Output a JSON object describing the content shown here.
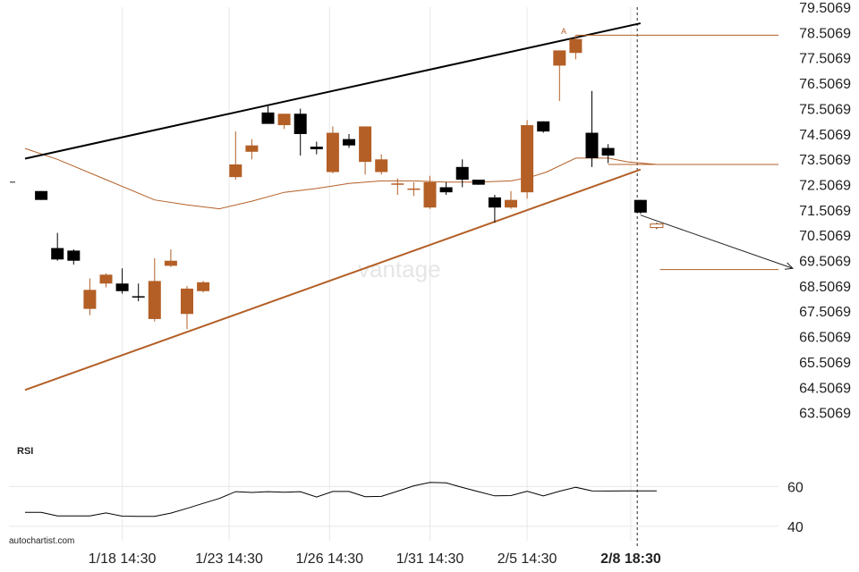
{
  "brand": "autochartist.com",
  "watermark": "vantage",
  "rsi_label": "RSI",
  "pattern_point_label": "A",
  "colors": {
    "up": "#b35f26",
    "down": "#000000",
    "support": "#b35f26",
    "resistance": "#000000",
    "grid": "#e8e8e8"
  },
  "chart_data": {
    "type": "candlestick",
    "price_axis": {
      "min": 62.5069,
      "max": 79.5069,
      "ticks": [
        "79.5069",
        "78.5069",
        "77.5069",
        "76.5069",
        "75.5069",
        "74.5069",
        "73.5069",
        "72.5069",
        "71.5069",
        "70.5069",
        "69.5069",
        "68.5069",
        "67.5069",
        "66.5069",
        "65.5069",
        "64.5069",
        "63.5069"
      ]
    },
    "time_labels": [
      {
        "label": "1/18 14:30",
        "i": 3
      },
      {
        "label": "1/23 14:30",
        "i": 6.3
      },
      {
        "label": "1/26 14:30",
        "i": 9.4
      },
      {
        "label": "1/31 14:30",
        "i": 12.5
      },
      {
        "label": "2/5 14:30",
        "i": 15.5
      },
      {
        "label": "2/8 18:30",
        "i": 18.7,
        "bold": true
      }
    ],
    "candles": [
      {
        "i": 0.5,
        "o": 72.25,
        "h": 72.25,
        "l": 71.9,
        "c": 71.9
      },
      {
        "i": 1.0,
        "o": 70.0,
        "h": 70.6,
        "l": 69.5,
        "c": 69.55
      },
      {
        "i": 1.5,
        "o": 69.9,
        "h": 69.95,
        "l": 69.35,
        "c": 69.5
      },
      {
        "i": 2.0,
        "o": 67.6,
        "h": 68.8,
        "l": 67.35,
        "c": 68.35
      },
      {
        "i": 2.5,
        "o": 68.6,
        "h": 69.0,
        "l": 68.45,
        "c": 68.95
      },
      {
        "i": 3.0,
        "o": 68.6,
        "h": 69.2,
        "l": 68.2,
        "c": 68.3
      },
      {
        "i": 3.5,
        "o": 68.1,
        "h": 68.6,
        "l": 67.9,
        "c": 68.05
      },
      {
        "i": 4.0,
        "o": 67.2,
        "h": 69.6,
        "l": 67.1,
        "c": 68.7
      },
      {
        "i": 4.5,
        "o": 69.3,
        "h": 69.95,
        "l": 69.25,
        "c": 69.5
      },
      {
        "i": 5.0,
        "o": 67.4,
        "h": 68.5,
        "l": 66.8,
        "c": 68.4
      },
      {
        "i": 5.5,
        "o": 68.3,
        "h": 68.7,
        "l": 68.25,
        "c": 68.65
      },
      {
        "i": 6.5,
        "o": 72.8,
        "h": 74.6,
        "l": 72.7,
        "c": 73.3
      },
      {
        "i": 7.0,
        "o": 73.8,
        "h": 74.3,
        "l": 73.5,
        "c": 74.05
      },
      {
        "i": 7.5,
        "o": 75.35,
        "h": 75.6,
        "l": 74.95,
        "c": 74.9
      },
      {
        "i": 8.0,
        "o": 74.85,
        "h": 75.3,
        "l": 74.7,
        "c": 75.3
      },
      {
        "i": 8.5,
        "o": 75.3,
        "h": 75.5,
        "l": 73.65,
        "c": 74.5
      },
      {
        "i": 9.0,
        "o": 74.0,
        "h": 74.2,
        "l": 73.7,
        "c": 73.9
      },
      {
        "i": 9.5,
        "o": 73.0,
        "h": 74.8,
        "l": 72.95,
        "c": 74.55
      },
      {
        "i": 10.0,
        "o": 74.3,
        "h": 74.5,
        "l": 73.95,
        "c": 74.05
      },
      {
        "i": 10.5,
        "o": 73.4,
        "h": 74.8,
        "l": 72.9,
        "c": 74.8
      },
      {
        "i": 11.0,
        "o": 73.0,
        "h": 73.7,
        "l": 72.9,
        "c": 73.5
      },
      {
        "i": 11.5,
        "o": 72.5,
        "h": 72.75,
        "l": 72.1,
        "c": 72.55
      },
      {
        "i": 12.0,
        "o": 72.35,
        "h": 72.6,
        "l": 72.05,
        "c": 72.35
      },
      {
        "i": 12.5,
        "o": 71.6,
        "h": 72.85,
        "l": 71.55,
        "c": 72.6
      },
      {
        "i": 13.0,
        "o": 72.4,
        "h": 72.6,
        "l": 72.1,
        "c": 72.2
      },
      {
        "i": 13.5,
        "o": 73.2,
        "h": 73.5,
        "l": 72.4,
        "c": 72.7
      },
      {
        "i": 14.0,
        "o": 72.7,
        "h": 72.7,
        "l": 72.5,
        "c": 72.5
      },
      {
        "i": 14.5,
        "o": 72.0,
        "h": 72.1,
        "l": 71.0,
        "c": 71.6
      },
      {
        "i": 15.0,
        "o": 71.6,
        "h": 72.25,
        "l": 71.55,
        "c": 71.9
      },
      {
        "i": 15.5,
        "o": 72.2,
        "h": 75.05,
        "l": 71.95,
        "c": 74.85
      },
      {
        "i": 16.0,
        "o": 75.0,
        "h": 75.0,
        "l": 74.55,
        "c": 74.6
      },
      {
        "i": 16.5,
        "o": 77.2,
        "h": 77.8,
        "l": 75.8,
        "c": 77.8
      },
      {
        "i": 17.0,
        "o": 77.7,
        "h": 78.4,
        "l": 77.45,
        "c": 78.25
      },
      {
        "i": 17.5,
        "o": 74.55,
        "h": 76.2,
        "l": 73.2,
        "c": 73.55
      },
      {
        "i": 18.0,
        "o": 73.95,
        "h": 74.1,
        "l": 73.35,
        "c": 73.65
      },
      {
        "i": 19.0,
        "o": 71.9,
        "h": 71.9,
        "l": 71.35,
        "c": 71.4
      }
    ],
    "forecast_candle": {
      "i": 19.5,
      "o": 70.95,
      "h": 71.0,
      "l": 70.75,
      "c": 70.85
    },
    "moving_average": [
      [
        0.0,
        73.93
      ],
      [
        1.0,
        73.5
      ],
      [
        2.5,
        72.7
      ],
      [
        4.0,
        71.9
      ],
      [
        5.0,
        71.7
      ],
      [
        6.0,
        71.55
      ],
      [
        7.0,
        71.85
      ],
      [
        8.0,
        72.2
      ],
      [
        9.0,
        72.35
      ],
      [
        10.0,
        72.55
      ],
      [
        11.0,
        72.65
      ],
      [
        12.0,
        72.65
      ],
      [
        13.0,
        72.6
      ],
      [
        14.0,
        72.6
      ],
      [
        15.0,
        72.65
      ],
      [
        15.6,
        72.8
      ],
      [
        16.1,
        73.0
      ],
      [
        17.0,
        73.55
      ],
      [
        18.0,
        73.55
      ],
      [
        18.6,
        73.4
      ],
      [
        19.5,
        73.3
      ]
    ],
    "resistance_line": {
      "from": [
        0.0,
        73.53
      ],
      "to": [
        19.0,
        78.87
      ]
    },
    "support_line": {
      "from": [
        0.0,
        64.4
      ],
      "to": [
        19.0,
        73.1
      ]
    },
    "level_lines": [
      {
        "from_i": 17.0,
        "to_i": 24.0,
        "value": 78.4
      },
      {
        "from_i": 18.0,
        "to_i": 24.0,
        "value": 73.3
      },
      {
        "from_i": 19.6,
        "to_i": 24.0,
        "value": 69.15
      }
    ],
    "forecast_arrow": {
      "from": [
        19.0,
        71.3
      ],
      "to": [
        23.7,
        69.2
      ]
    },
    "projection_time_i": 18.9,
    "rsi": {
      "ticks": [
        "60",
        "40"
      ],
      "tick_values": [
        60,
        40
      ],
      "min": 35,
      "max": 70,
      "values": [
        [
          0.0,
          47.0
        ],
        [
          0.5,
          47.0
        ],
        [
          1.0,
          45.2
        ],
        [
          1.5,
          45.2
        ],
        [
          2.0,
          45.2
        ],
        [
          2.5,
          46.7
        ],
        [
          3.0,
          45.1
        ],
        [
          3.5,
          45.0
        ],
        [
          4.0,
          45.0
        ],
        [
          4.5,
          46.6
        ],
        [
          5.0,
          49.0
        ],
        [
          5.5,
          51.5
        ],
        [
          6.0,
          54.0
        ],
        [
          6.5,
          57.4
        ],
        [
          7.0,
          57.0
        ],
        [
          7.5,
          57.4
        ],
        [
          8.0,
          57.1
        ],
        [
          8.5,
          57.4
        ],
        [
          9.0,
          54.7
        ],
        [
          9.5,
          57.5
        ],
        [
          10.0,
          57.5
        ],
        [
          10.5,
          54.9
        ],
        [
          11.0,
          55.0
        ],
        [
          11.5,
          57.6
        ],
        [
          12.0,
          60.3
        ],
        [
          12.5,
          62.0
        ],
        [
          13.0,
          61.8
        ],
        [
          13.5,
          59.5
        ],
        [
          14.0,
          57.4
        ],
        [
          14.5,
          55.3
        ],
        [
          15.0,
          55.4
        ],
        [
          15.5,
          57.6
        ],
        [
          16.0,
          55.3
        ],
        [
          16.5,
          57.6
        ],
        [
          17.0,
          59.6
        ],
        [
          17.5,
          57.8
        ],
        [
          18.0,
          57.7
        ],
        [
          18.5,
          57.8
        ],
        [
          19.5,
          57.8
        ]
      ]
    }
  }
}
